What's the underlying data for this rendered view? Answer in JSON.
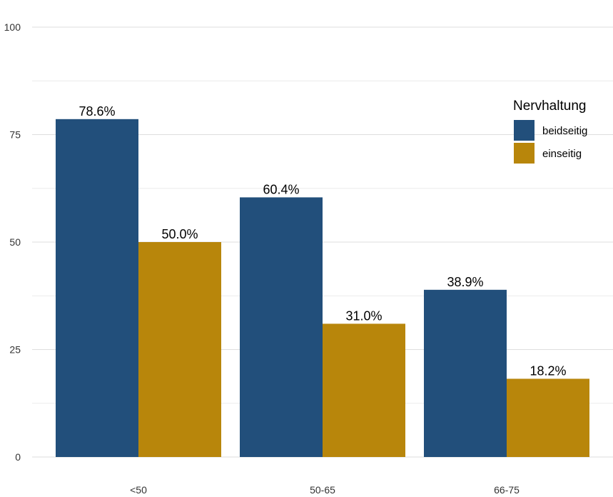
{
  "chart_data": {
    "type": "bar",
    "title": "",
    "xlabel": "",
    "ylabel": "",
    "categories": [
      "<50",
      "50-65",
      "66-75"
    ],
    "series": [
      {
        "name": "beidseitig",
        "values": [
          78.6,
          60.4,
          38.9
        ],
        "labels": [
          "78.6%",
          "60.4%",
          "38.9%"
        ],
        "color": "#224f7b"
      },
      {
        "name": "einseitig",
        "values": [
          50.0,
          31.0,
          18.2
        ],
        "labels": [
          "50.0%",
          "31.0%",
          "18.2%"
        ],
        "color": "#b8860b"
      }
    ],
    "ylim": [
      0,
      100
    ],
    "yticks": [
      0,
      25,
      50,
      75,
      100
    ],
    "grid": true,
    "legend": {
      "title": "Nervhaltung",
      "position": "top-right"
    }
  }
}
